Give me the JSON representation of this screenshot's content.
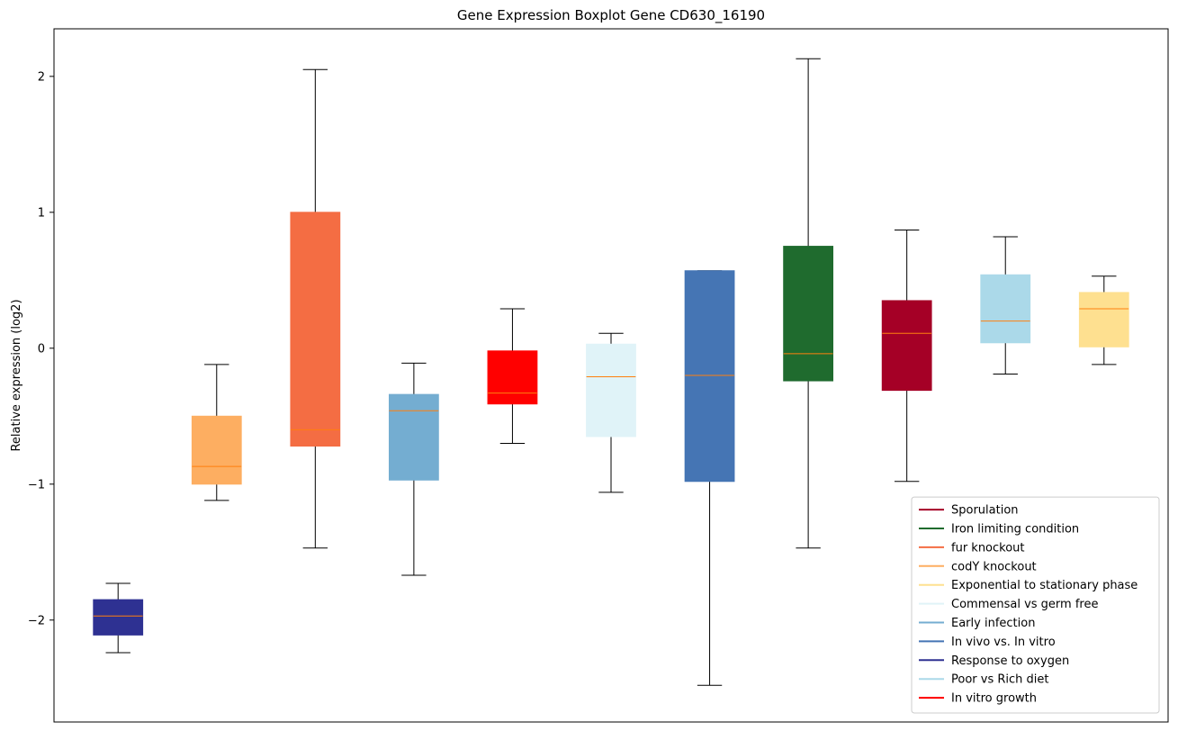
{
  "chart_data": {
    "type": "box",
    "title": "Gene Expression Boxplot Gene CD630_16190",
    "xlabel": "",
    "ylabel": "Relative expression (log2)",
    "ylim": [
      -2.75,
      2.35
    ],
    "yticks": [
      2,
      1,
      0,
      -1,
      -2
    ],
    "ytick_labels": [
      "2",
      "1",
      "0",
      "−1",
      "−2"
    ],
    "grid": false,
    "legend_position": "lower-right",
    "median_color": "#ff7f0e",
    "boxes": [
      {
        "name": "Response to oxygen",
        "color": "#2e3192",
        "whisker_low": -2.24,
        "q1": -2.11,
        "median": -1.97,
        "q3": -1.85,
        "whisker_high": -1.73
      },
      {
        "name": "codY knockout",
        "color": "#fdae61",
        "whisker_low": -1.12,
        "q1": -1.0,
        "median": -0.87,
        "q3": -0.5,
        "whisker_high": -0.12
      },
      {
        "name": "fur knockout",
        "color": "#f46d43",
        "whisker_low": -1.47,
        "q1": -0.72,
        "median": -0.6,
        "q3": 1.0,
        "whisker_high": 2.05
      },
      {
        "name": "Early infection",
        "color": "#74add1",
        "whisker_low": -1.67,
        "q1": -0.97,
        "median": -0.46,
        "q3": -0.34,
        "whisker_high": -0.11
      },
      {
        "name": "In vitro growth",
        "color": "#ff0000",
        "whisker_low": -0.7,
        "q1": -0.41,
        "median": -0.33,
        "q3": -0.02,
        "whisker_high": 0.29
      },
      {
        "name": "Commensal vs germ free",
        "color": "#e0f3f8",
        "whisker_low": -1.06,
        "q1": -0.65,
        "median": -0.21,
        "q3": 0.03,
        "whisker_high": 0.11
      },
      {
        "name": "In vivo vs. In vitro",
        "color": "#4575b4",
        "whisker_low": -2.48,
        "q1": -0.98,
        "median": -0.2,
        "q3": 0.57,
        "whisker_high": 0.57
      },
      {
        "name": "Iron limiting condition",
        "color": "#1f6b2e",
        "whisker_low": -1.47,
        "q1": -0.24,
        "median": -0.04,
        "q3": 0.75,
        "whisker_high": 2.13
      },
      {
        "name": "Sporulation",
        "color": "#a50026",
        "whisker_low": -0.98,
        "q1": -0.31,
        "median": 0.11,
        "q3": 0.35,
        "whisker_high": 0.87
      },
      {
        "name": "Poor vs Rich diet",
        "color": "#abd9e9",
        "whisker_low": -0.19,
        "q1": 0.04,
        "median": 0.2,
        "q3": 0.54,
        "whisker_high": 0.82
      },
      {
        "name": "Exponential to stationary phase",
        "color": "#fee090",
        "whisker_low": -0.12,
        "q1": 0.01,
        "median": 0.29,
        "q3": 0.41,
        "whisker_high": 0.53
      }
    ],
    "legend": [
      {
        "label": "Sporulation",
        "color": "#a50026"
      },
      {
        "label": "Iron limiting condition",
        "color": "#1f6b2e"
      },
      {
        "label": "fur knockout",
        "color": "#f46d43"
      },
      {
        "label": "codY knockout",
        "color": "#fdae61"
      },
      {
        "label": "Exponential to stationary phase",
        "color": "#fee090"
      },
      {
        "label": "Commensal vs germ free",
        "color": "#e0f3f8"
      },
      {
        "label": "Early infection",
        "color": "#74add1"
      },
      {
        "label": "In vivo vs. In vitro",
        "color": "#4575b4"
      },
      {
        "label": "Response to oxygen",
        "color": "#2e3192"
      },
      {
        "label": "Poor vs Rich diet",
        "color": "#abd9e9"
      },
      {
        "label": "In vitro growth",
        "color": "#ff0000"
      }
    ]
  }
}
